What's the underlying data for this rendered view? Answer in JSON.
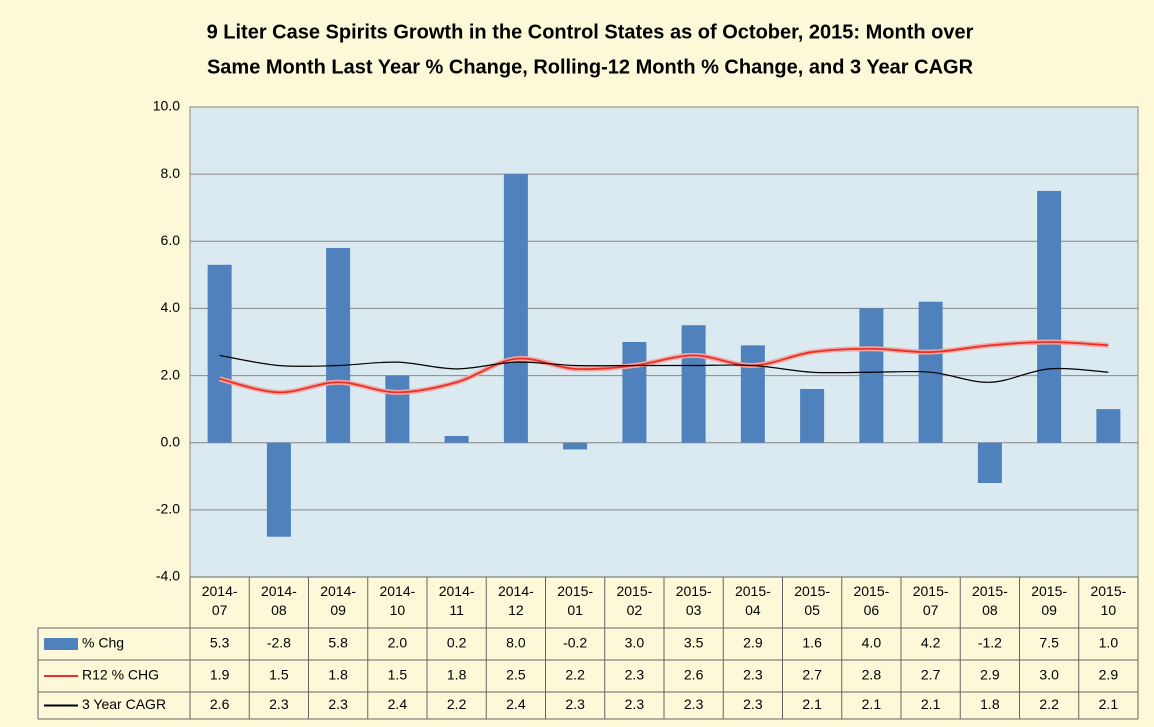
{
  "chart_data": {
    "type": "bar-line",
    "title": [
      "9 Liter Case Spirits Growth in the Control States as of October, 2015:  Month over",
      "Same Month Last Year % Change, Rolling-12 Month % Change, and 3 Year CAGR"
    ],
    "categories": [
      "2014-07",
      "2014-08",
      "2014-09",
      "2014-10",
      "2014-11",
      "2014-12",
      "2015-01",
      "2015-02",
      "2015-03",
      "2015-04",
      "2015-05",
      "2015-06",
      "2015-07",
      "2015-08",
      "2015-09",
      "2015-10"
    ],
    "series": [
      {
        "name": "% Chg",
        "type": "bar",
        "color": "#4f81bd",
        "values": [
          5.3,
          -2.8,
          5.8,
          2.0,
          0.2,
          8.0,
          -0.2,
          3.0,
          3.5,
          2.9,
          1.6,
          4.0,
          4.2,
          -1.2,
          7.5,
          1.0
        ],
        "value_labels": [
          "5.3",
          "-2.8",
          "5.8",
          "2.0",
          "0.2",
          "8.0",
          "-0.2",
          "3.0",
          "3.5",
          "2.9",
          "1.6",
          "4.0",
          "4.2",
          "-1.2",
          "7.5",
          "1.0"
        ]
      },
      {
        "name": "R12 % CHG",
        "type": "line",
        "color": "#e8302a",
        "values": [
          1.9,
          1.5,
          1.8,
          1.5,
          1.8,
          2.5,
          2.2,
          2.3,
          2.6,
          2.3,
          2.7,
          2.8,
          2.7,
          2.9,
          3.0,
          2.9
        ],
        "value_labels": [
          "1.9",
          "1.5",
          "1.8",
          "1.5",
          "1.8",
          "2.5",
          "2.2",
          "2.3",
          "2.6",
          "2.3",
          "2.7",
          "2.8",
          "2.7",
          "2.9",
          "3.0",
          "2.9"
        ]
      },
      {
        "name": "3 Year CAGR",
        "type": "line",
        "color": "#000000",
        "values": [
          2.6,
          2.3,
          2.3,
          2.4,
          2.2,
          2.4,
          2.3,
          2.3,
          2.3,
          2.3,
          2.1,
          2.1,
          2.1,
          1.8,
          2.2,
          2.1
        ],
        "value_labels": [
          "2.6",
          "2.3",
          "2.3",
          "2.4",
          "2.2",
          "2.4",
          "2.3",
          "2.3",
          "2.3",
          "2.3",
          "2.1",
          "2.1",
          "2.1",
          "1.8",
          "2.2",
          "2.1"
        ]
      }
    ],
    "ylim": [
      -4,
      10
    ],
    "yticks": [
      {
        "value": -4,
        "label": "-4.0"
      },
      {
        "value": -2,
        "label": "-2.0"
      },
      {
        "value": 0,
        "label": "0.0"
      },
      {
        "value": 2,
        "label": "2.0"
      },
      {
        "value": 4,
        "label": "4.0"
      },
      {
        "value": 6,
        "label": "6.0"
      },
      {
        "value": 8,
        "label": "8.0"
      },
      {
        "value": 10,
        "label": "10.0"
      }
    ],
    "grid": true
  }
}
